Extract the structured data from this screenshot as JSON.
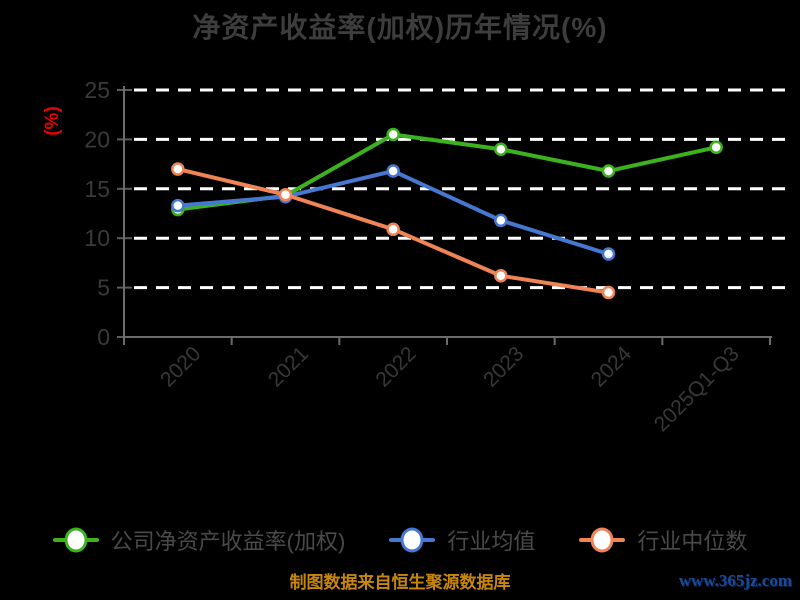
{
  "chart_data": {
    "type": "line",
    "title": "净资产收益率(加权)历年情况(%)",
    "ylabel": "(%)",
    "categories": [
      "2020",
      "2021",
      "2022",
      "2023",
      "2024",
      "2025Q1-Q3"
    ],
    "ylim": [
      0,
      25
    ],
    "yticks": [
      0,
      5,
      10,
      15,
      20,
      25
    ],
    "grid": "horizontal-white-dashed",
    "legend_position": "bottom",
    "background": "#000000",
    "series": [
      {
        "name": "公司净资产收益率(加权)",
        "color": "#3cb31e",
        "values": [
          12.9,
          14.3,
          20.5,
          19.0,
          16.8,
          19.2
        ]
      },
      {
        "name": "行业均值",
        "color": "#4678d2",
        "values": [
          13.3,
          14.2,
          16.8,
          11.8,
          8.4,
          null
        ]
      },
      {
        "name": "行业中位数",
        "color": "#f08455",
        "values": [
          17.0,
          14.4,
          10.9,
          6.2,
          4.5,
          null
        ]
      }
    ],
    "colors": {
      "title_text": "#3d3d3d",
      "axis_label_text": "#3a3a3a",
      "axis_line": "#6c6c6c",
      "gridline": "#ffffff",
      "ylabel_text": "#e60000",
      "legend_text": "#4a4a4a"
    }
  },
  "footer": {
    "source": "制图数据来自恒生聚源数据库",
    "site": "www.365jz.com"
  }
}
